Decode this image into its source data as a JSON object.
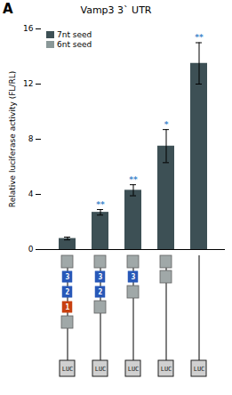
{
  "chart_data": {
    "type": "bar",
    "title": "Vamp3 3` UTR",
    "panel_label": "A",
    "ylabel": "Relative luciferase activity (FL/RL)",
    "categories": [
      null,
      null,
      null,
      null,
      null
    ],
    "values": [
      0.8,
      2.7,
      4.3,
      7.5,
      13.5
    ],
    "errors": [
      0.1,
      0.2,
      0.4,
      1.2,
      1.5
    ],
    "color": "#3d5055",
    "significance": [
      null,
      "**",
      "**",
      "*",
      "**"
    ],
    "significance_color": "#4488cc",
    "ylim": [
      0,
      16.0
    ],
    "yticks": [
      0,
      4,
      8,
      12,
      16
    ],
    "grid": false,
    "tick_labels": "y",
    "legend": "upper left",
    "legend_entries": [
      {
        "name": "7nt seed",
        "color": "#3d5055"
      },
      {
        "name": "6nt seed",
        "color": "#8a9898"
      }
    ],
    "diagram": {
      "luc_label": "LUC",
      "columns": [
        {
          "top_box": true,
          "numbered": [
            "3",
            "2",
            "1"
          ],
          "bot_box": true,
          "luc": true
        },
        {
          "top_box": true,
          "numbered": [
            "3",
            "2"
          ],
          "bot_box": true,
          "luc": true
        },
        {
          "top_box": true,
          "numbered": [
            "3"
          ],
          "bot_box": true,
          "luc": true
        },
        {
          "top_box": true,
          "numbered": [],
          "bot_box": true,
          "luc": true
        },
        {
          "top_box": false,
          "numbered": [],
          "bot_box": false,
          "luc": true
        }
      ],
      "number_colors": {
        "1": "#c84010",
        "2": "#2858b8",
        "3": "#2858b8"
      },
      "number_text_color": "white",
      "gray_box_color": "#a0a8a8",
      "gray_box_border": "#606060",
      "luc_box_color": "#d0d0d0",
      "luc_box_border": "#202020",
      "luc_text_color": "#202020"
    }
  }
}
